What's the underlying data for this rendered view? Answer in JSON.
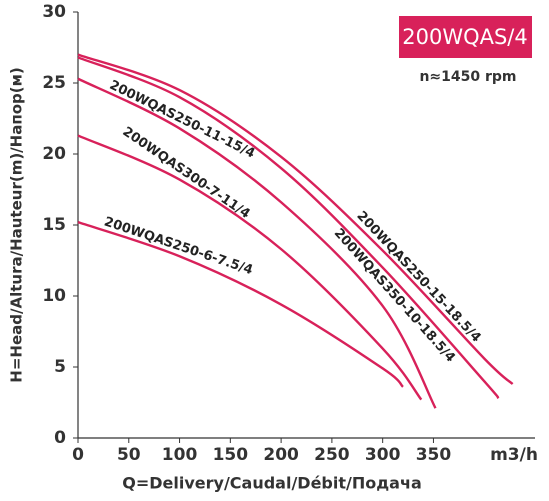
{
  "chart_data": {
    "type": "line",
    "title": "200WQAS/4",
    "subtitle": "n≈1450 rpm",
    "x_label": "Q=Delivery/Caudal/Débit/Подача",
    "x_unit": "m3/h",
    "y_label": "H=Head/Altura/Hauteur(m)/Напор(м)",
    "xlim": [
      0,
      450
    ],
    "xticks": [
      0,
      50,
      100,
      150,
      200,
      250,
      300,
      350
    ],
    "ylim": [
      0,
      30
    ],
    "yticks": [
      0,
      5,
      10,
      15,
      20,
      25,
      30
    ],
    "grid": false,
    "series": [
      {
        "name": "200WQAS250-15-18.5/4",
        "color": "#d8215a",
        "x": [
          0,
          100,
          200,
          300,
          400,
          428
        ],
        "values": [
          27,
          24.5,
          19.8,
          13.2,
          5.6,
          3.8
        ]
      },
      {
        "name": "200WQAS350-10-18.5/4",
        "color": "#d8215a",
        "x": [
          0,
          100,
          200,
          300,
          400,
          414
        ],
        "values": [
          26.8,
          24,
          19,
          12,
          4,
          2.8
        ]
      },
      {
        "name": "200WQAS250-11-15/4",
        "color": "#d8215a",
        "x": [
          0,
          100,
          200,
          300,
          352
        ],
        "values": [
          25.3,
          21.8,
          16.6,
          9.3,
          2.1
        ]
      },
      {
        "name": "200WQAS300-7-11/4",
        "color": "#d8215a",
        "x": [
          0,
          100,
          200,
          300,
          338
        ],
        "values": [
          21.3,
          18.2,
          13.3,
          6.3,
          2.7
        ]
      },
      {
        "name": "200WQAS250-6-7.5/4",
        "color": "#d8215a",
        "x": [
          0,
          100,
          200,
          300,
          320
        ],
        "values": [
          15.2,
          12.8,
          9.4,
          4.9,
          3.6
        ]
      }
    ]
  }
}
